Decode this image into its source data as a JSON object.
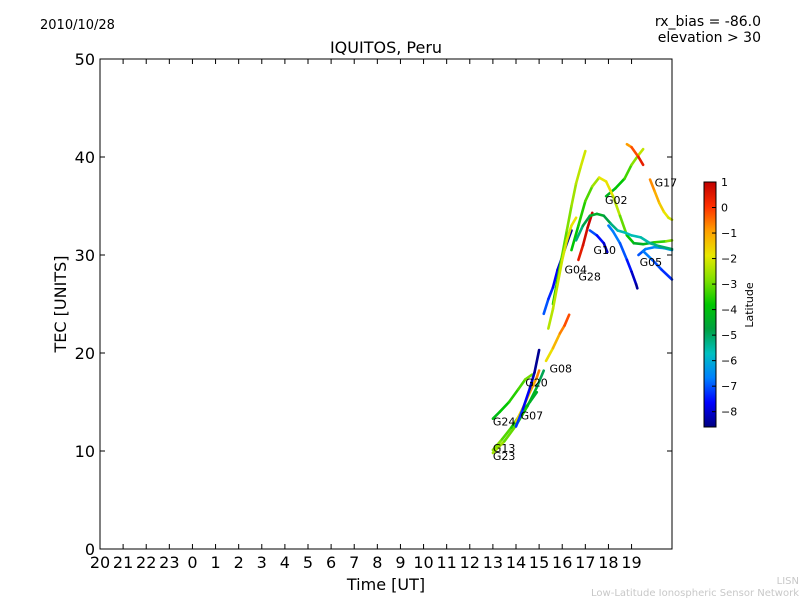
{
  "header": {
    "date": "2010/10/28",
    "rx_bias": "rx_bias = -86.0",
    "elevation": "elevation > 30"
  },
  "footer": {
    "org_short": "LISN",
    "org_long": "Low-Latitude Ionospheric Sensor Network"
  },
  "chart_data": {
    "type": "line",
    "title": "IQUITOS, Peru",
    "xlabel": "Time [UT]",
    "ylabel": "TEC [UNITS]",
    "xlim": [
      20,
      44.75
    ],
    "ylim": [
      0,
      50
    ],
    "x_ticks": [
      {
        "pos": 20,
        "label": "20"
      },
      {
        "pos": 21,
        "label": "21"
      },
      {
        "pos": 22,
        "label": "22"
      },
      {
        "pos": 23,
        "label": "23"
      },
      {
        "pos": 24,
        "label": "0"
      },
      {
        "pos": 25,
        "label": "1"
      },
      {
        "pos": 26,
        "label": "2"
      },
      {
        "pos": 27,
        "label": "3"
      },
      {
        "pos": 28,
        "label": "4"
      },
      {
        "pos": 29,
        "label": "5"
      },
      {
        "pos": 30,
        "label": "6"
      },
      {
        "pos": 31,
        "label": "7"
      },
      {
        "pos": 32,
        "label": "8"
      },
      {
        "pos": 33,
        "label": "9"
      },
      {
        "pos": 34,
        "label": "10"
      },
      {
        "pos": 35,
        "label": "11"
      },
      {
        "pos": 36,
        "label": "12"
      },
      {
        "pos": 37,
        "label": "13"
      },
      {
        "pos": 38,
        "label": "14"
      },
      {
        "pos": 39,
        "label": "15"
      },
      {
        "pos": 40,
        "label": "16"
      },
      {
        "pos": 41,
        "label": "17"
      },
      {
        "pos": 42,
        "label": "18"
      },
      {
        "pos": 43,
        "label": "19"
      }
    ],
    "y_ticks": [
      0,
      10,
      20,
      30,
      40,
      50
    ],
    "grid": false,
    "colorbar": {
      "label": "Latitude",
      "range": [
        -8.6,
        1.0
      ],
      "ticks": [
        1,
        0,
        -1,
        -2,
        -3,
        -4,
        -5,
        -6,
        -7,
        -8
      ],
      "colormap": [
        "#000080",
        "#0000ff",
        "#0080ff",
        "#00c0c0",
        "#00a040",
        "#00c800",
        "#80e000",
        "#e8e800",
        "#ffa000",
        "#ff3000",
        "#c00000"
      ]
    },
    "series": [
      {
        "name": "G24",
        "label_at": [
          37.0,
          13.0
        ],
        "points": [
          [
            37.0,
            13.3,
            -4.2
          ],
          [
            37.3,
            14.0,
            -4.0
          ],
          [
            37.7,
            15.0,
            -3.7
          ],
          [
            38.1,
            16.3,
            -3.4
          ],
          [
            38.4,
            17.3,
            -3.1
          ],
          [
            38.7,
            17.8,
            -2.8
          ]
        ]
      },
      {
        "name": "G13",
        "label_at": [
          37.0,
          10.3
        ],
        "points": [
          [
            37.0,
            10.1,
            -2.6
          ],
          [
            37.4,
            11.2,
            -3.0
          ],
          [
            37.8,
            12.4,
            -3.4
          ],
          [
            38.2,
            13.8,
            -3.9
          ],
          [
            38.6,
            15.0,
            -4.3
          ],
          [
            38.9,
            16.0,
            -4.6
          ]
        ]
      },
      {
        "name": "G23",
        "label_at": [
          37.0,
          9.5
        ],
        "points": [
          [
            37.0,
            9.8,
            -2.3
          ],
          [
            37.5,
            11.0,
            -2.8
          ],
          [
            38.0,
            12.6,
            -3.3
          ],
          [
            38.5,
            14.6,
            -4.0
          ],
          [
            38.9,
            16.5,
            -4.6
          ],
          [
            39.2,
            18.2,
            -5.2
          ]
        ]
      },
      {
        "name": "G07",
        "label_at": [
          38.2,
          13.6
        ],
        "points": [
          [
            38.0,
            13.0,
            -1.8
          ],
          [
            38.3,
            14.4,
            -1.5
          ],
          [
            38.6,
            16.0,
            -1.2
          ],
          [
            38.9,
            17.5,
            -0.8
          ],
          [
            39.0,
            18.2,
            -0.5
          ]
        ]
      },
      {
        "name": "G20",
        "label_at": [
          38.4,
          17.0
        ],
        "points": [
          [
            38.0,
            12.5,
            -7.0
          ],
          [
            38.3,
            14.3,
            -7.5
          ],
          [
            38.6,
            16.4,
            -7.9
          ],
          [
            38.8,
            18.0,
            -8.3
          ],
          [
            39.0,
            20.3,
            -8.6
          ]
        ]
      },
      {
        "name": "G08",
        "label_at": [
          39.45,
          18.4
        ],
        "points": [
          [
            39.3,
            19.2,
            -2.0
          ],
          [
            39.6,
            20.5,
            -1.5
          ],
          [
            39.9,
            22.0,
            -0.9
          ],
          [
            40.1,
            22.8,
            -0.4
          ],
          [
            40.3,
            23.9,
            0.0
          ]
        ]
      },
      {
        "name": "G04",
        "label_at": [
          40.1,
          28.5
        ],
        "points": [
          [
            39.2,
            24.0,
            -6.8
          ],
          [
            39.4,
            25.5,
            -7.2
          ],
          [
            39.6,
            26.7,
            -7.5
          ],
          [
            39.8,
            28.5,
            -7.8
          ],
          [
            40.0,
            29.8,
            -8.1
          ],
          [
            40.2,
            31.2,
            -8.3
          ],
          [
            40.4,
            32.5,
            -8.5
          ]
        ]
      },
      {
        "name": "G28",
        "label_at": [
          40.7,
          27.8
        ],
        "points": [
          [
            40.7,
            29.5,
            0.3
          ],
          [
            40.9,
            31.0,
            0.6
          ],
          [
            41.1,
            32.8,
            0.8
          ],
          [
            41.3,
            34.3,
            1.0
          ]
        ]
      },
      {
        "name": "G10",
        "label_at": [
          41.35,
          30.5
        ],
        "points": [
          [
            41.2,
            32.5,
            -6.8
          ],
          [
            41.5,
            32.0,
            -7.3
          ],
          [
            41.8,
            31.2,
            -7.8
          ],
          [
            41.95,
            30.3,
            -8.3
          ]
        ]
      },
      {
        "name": "G02",
        "label_at": [
          41.85,
          35.6
        ],
        "points": [
          [
            41.9,
            36.0,
            -4.4
          ],
          [
            42.3,
            36.8,
            -4.1
          ],
          [
            42.7,
            37.8,
            -3.6
          ],
          [
            43.0,
            39.2,
            -3.0
          ],
          [
            43.3,
            40.2,
            -2.5
          ],
          [
            43.5,
            40.8,
            -2.0
          ]
        ]
      },
      {
        "name": "G17",
        "label_at": [
          44.0,
          37.4
        ],
        "points": [
          [
            43.8,
            37.7,
            -0.6
          ],
          [
            44.0,
            36.5,
            -0.9
          ],
          [
            44.2,
            35.3,
            -1.3
          ],
          [
            44.4,
            34.4,
            -1.7
          ],
          [
            44.6,
            33.8,
            -2.0
          ],
          [
            44.75,
            33.6,
            -2.2
          ]
        ]
      },
      {
        "name": "G05",
        "label_at": [
          43.35,
          29.3
        ],
        "points": [
          [
            43.3,
            30.0,
            -7.2
          ],
          [
            43.6,
            30.6,
            -6.8
          ],
          [
            44.0,
            30.8,
            -6.5
          ],
          [
            44.4,
            30.7,
            -6.3
          ],
          [
            44.75,
            30.5,
            -6.2
          ]
        ]
      },
      {
        "name": "",
        "label_at": null,
        "points": [
          [
            39.6,
            25.0,
            -3.8
          ],
          [
            39.8,
            27.5,
            -3.5
          ],
          [
            40.0,
            30.0,
            -3.2
          ],
          [
            40.2,
            32.5,
            -3.0
          ],
          [
            40.4,
            35.0,
            -2.7
          ],
          [
            40.6,
            37.3,
            -2.4
          ],
          [
            40.8,
            39.0,
            -2.2
          ],
          [
            41.0,
            40.6,
            -2.0
          ]
        ]
      },
      {
        "name": "",
        "label_at": null,
        "points": [
          [
            39.4,
            22.5,
            -2.4
          ],
          [
            39.6,
            24.5,
            -2.3
          ],
          [
            39.8,
            27.0,
            -2.2
          ],
          [
            40.0,
            29.5,
            -2.1
          ],
          [
            40.2,
            31.5,
            -2.0
          ],
          [
            40.4,
            33.0,
            -1.9
          ],
          [
            40.6,
            33.8,
            -1.8
          ]
        ]
      },
      {
        "name": "",
        "label_at": null,
        "points": [
          [
            40.4,
            30.5,
            -4.0
          ],
          [
            40.7,
            33.0,
            -3.7
          ],
          [
            41.0,
            35.5,
            -3.4
          ],
          [
            41.3,
            37.0,
            -3.0
          ],
          [
            41.6,
            37.9,
            -2.1
          ],
          [
            41.9,
            37.5,
            -1.6
          ],
          [
            42.2,
            36.0,
            -2.0
          ],
          [
            42.5,
            34.0,
            -2.6
          ],
          [
            42.8,
            32.0,
            -3.5
          ],
          [
            43.1,
            31.2,
            -4.2
          ],
          [
            43.5,
            31.1,
            -4.6
          ],
          [
            44.0,
            31.3,
            -3.9
          ],
          [
            44.5,
            31.4,
            -3.0
          ],
          [
            44.75,
            31.5,
            -2.6
          ]
        ]
      },
      {
        "name": "",
        "label_at": null,
        "points": [
          [
            40.6,
            31.5,
            -5.4
          ],
          [
            40.9,
            33.0,
            -5.0
          ],
          [
            41.2,
            34.0,
            -4.6
          ],
          [
            41.5,
            34.2,
            -4.3
          ],
          [
            41.8,
            34.0,
            -4.5
          ],
          [
            42.1,
            33.2,
            -5.0
          ],
          [
            42.4,
            32.5,
            -5.5
          ],
          [
            42.7,
            32.3,
            -5.7
          ],
          [
            43.0,
            32.0,
            -5.6
          ],
          [
            43.4,
            31.8,
            -5.7
          ],
          [
            43.8,
            31.2,
            -5.4
          ],
          [
            44.2,
            30.9,
            -5.2
          ],
          [
            44.75,
            30.6,
            -5.0
          ]
        ]
      },
      {
        "name": "",
        "label_at": null,
        "points": [
          [
            42.0,
            33.0,
            -6.8
          ],
          [
            42.2,
            32.4,
            -6.6
          ],
          [
            42.5,
            31.2,
            -6.8
          ],
          [
            42.8,
            29.5,
            -7.2
          ],
          [
            43.0,
            28.3,
            -7.8
          ],
          [
            43.2,
            27.0,
            -8.3
          ],
          [
            43.25,
            26.6,
            -8.5
          ]
        ]
      },
      {
        "name": "",
        "label_at": null,
        "points": [
          [
            43.5,
            30.4,
            -6.5
          ],
          [
            43.9,
            29.5,
            -6.9
          ],
          [
            44.3,
            28.5,
            -7.2
          ],
          [
            44.75,
            27.5,
            -7.4
          ]
        ]
      },
      {
        "name": "",
        "label_at": null,
        "points": [
          [
            42.8,
            41.3,
            -1.2
          ],
          [
            43.0,
            41.0,
            -0.6
          ],
          [
            43.3,
            40.0,
            0.2
          ],
          [
            43.5,
            39.2,
            0.6
          ]
        ]
      }
    ]
  }
}
